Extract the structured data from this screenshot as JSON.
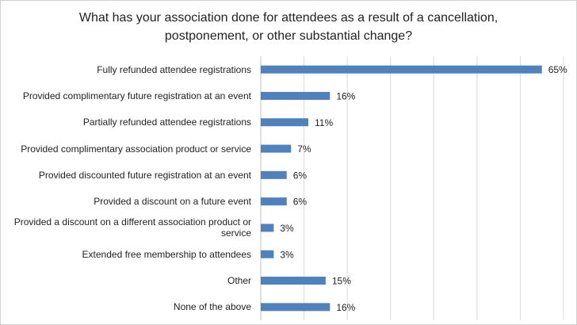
{
  "chart_data": {
    "type": "bar",
    "orientation": "horizontal",
    "title": "What has your association done for attendees as a result of a cancellation, postponement, or other substantial change?",
    "categories": [
      "Fully refunded attendee registrations",
      "Provided complimentary future registration at an event",
      "Partially refunded attendee registrations",
      "Provided complimentary association product or service",
      "Provided discounted future registration at an event",
      "Provided a discount on a future event",
      "Provided a discount on a different association product or service",
      "Extended free membership to attendees",
      "Other",
      "None of the above"
    ],
    "values": [
      65,
      16,
      11,
      7,
      6,
      6,
      3,
      3,
      15,
      16
    ],
    "data_labels": [
      "65%",
      "16%",
      "11%",
      "7%",
      "6%",
      "6%",
      "3%",
      "3%",
      "15%",
      "16%"
    ],
    "xlim": [
      0,
      70
    ],
    "grid": true,
    "bar_color": "#4f81bd"
  }
}
